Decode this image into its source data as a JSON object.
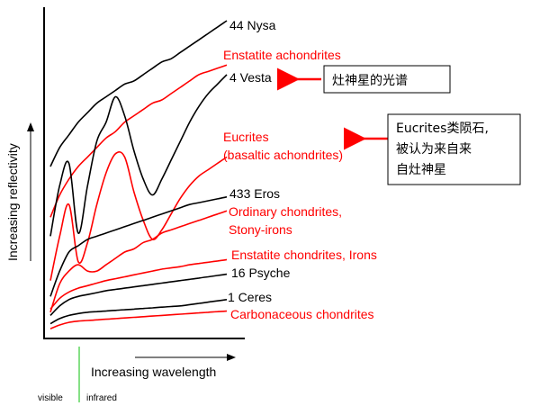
{
  "chart_data": {
    "type": "line",
    "title": "",
    "xlabel": "Increasing wavelength",
    "ylabel": "Increasing reflectivity",
    "x_markers": [
      "visible",
      "infrared"
    ],
    "x": [
      0,
      1,
      2,
      3,
      4,
      5,
      6,
      7,
      8,
      9,
      10,
      11,
      12,
      13,
      14,
      15,
      16,
      17,
      18,
      19
    ],
    "series": [
      {
        "name": "44 Nysa",
        "color": "#000000",
        "values": [
          2.6,
          2.9,
          3.1,
          3.3,
          3.45,
          3.6,
          3.7,
          3.8,
          3.9,
          3.95,
          4.05,
          4.15,
          4.25,
          4.3,
          4.4,
          4.5,
          4.6,
          4.7,
          4.8,
          4.9
        ]
      },
      {
        "name": "Enstatite achondrites",
        "color": "#ff0000",
        "values": [
          1.8,
          2.15,
          2.4,
          2.6,
          2.75,
          2.9,
          3.05,
          3.15,
          3.3,
          3.4,
          3.5,
          3.6,
          3.65,
          3.75,
          3.85,
          3.95,
          4.05,
          4.1,
          4.15,
          4.2
        ]
      },
      {
        "name": "4 Vesta",
        "color": "#000000",
        "values": [
          1.5,
          2.3,
          2.65,
          1.55,
          2.3,
          3.0,
          3.3,
          3.7,
          3.4,
          2.85,
          2.4,
          2.15,
          2.4,
          2.7,
          3.0,
          3.3,
          3.55,
          3.75,
          3.9,
          4.05
        ]
      },
      {
        "name": "Eucrites (basaltic achondrites)",
        "color": "#ff0000",
        "values": [
          0.8,
          1.5,
          2.0,
          1.1,
          1.4,
          2.0,
          2.5,
          2.8,
          2.75,
          2.2,
          1.75,
          1.45,
          1.6,
          1.85,
          2.1,
          2.3,
          2.45,
          2.55,
          2.65,
          2.75
        ]
      },
      {
        "name": "433 Eros",
        "color": "#000000",
        "values": [
          0.55,
          0.95,
          1.25,
          1.35,
          1.45,
          1.5,
          1.55,
          1.6,
          1.65,
          1.7,
          1.75,
          1.8,
          1.85,
          1.9,
          1.95,
          2.0,
          2.03,
          2.06,
          2.09,
          2.12
        ]
      },
      {
        "name": "Ordinary chondrites, Stony-irons",
        "color": "#ff0000",
        "values": [
          0.3,
          0.75,
          0.95,
          1.05,
          0.95,
          0.95,
          1.05,
          1.15,
          1.25,
          1.3,
          1.4,
          1.45,
          1.55,
          1.6,
          1.65,
          1.7,
          1.75,
          1.8,
          1.85,
          1.9
        ]
      },
      {
        "name": "Enstatite chondrites, Irons",
        "color": "#ff0000",
        "values": [
          0.35,
          0.52,
          0.62,
          0.68,
          0.72,
          0.76,
          0.8,
          0.83,
          0.86,
          0.89,
          0.92,
          0.95,
          0.98,
          1.0,
          1.02,
          1.05,
          1.07,
          1.09,
          1.11,
          1.13
        ]
      },
      {
        "name": "16 Psyche",
        "color": "#000000",
        "values": [
          0.25,
          0.4,
          0.5,
          0.55,
          0.58,
          0.61,
          0.64,
          0.66,
          0.68,
          0.7,
          0.72,
          0.74,
          0.76,
          0.78,
          0.8,
          0.82,
          0.84,
          0.86,
          0.88,
          0.9
        ]
      },
      {
        "name": "1 Ceres",
        "color": "#000000",
        "values": [
          0.12,
          0.2,
          0.25,
          0.28,
          0.3,
          0.31,
          0.32,
          0.33,
          0.34,
          0.35,
          0.36,
          0.37,
          0.38,
          0.39,
          0.4,
          0.42,
          0.44,
          0.46,
          0.48,
          0.5
        ]
      },
      {
        "name": "Carbonaceous chondrites",
        "color": "#ff0000",
        "values": [
          0.04,
          0.1,
          0.14,
          0.16,
          0.17,
          0.18,
          0.19,
          0.2,
          0.21,
          0.22,
          0.23,
          0.24,
          0.25,
          0.26,
          0.27,
          0.28,
          0.29,
          0.3,
          0.31,
          0.32
        ]
      }
    ],
    "ylim": [
      0,
      5
    ],
    "grid": false,
    "annotations": [
      {
        "text": "灶神星的光谱",
        "points_to": "4 Vesta"
      },
      {
        "text_lines": [
          "Eucrites类陨石,",
          "被认为来自来",
          "自灶神星"
        ],
        "points_to": "Eucrites (basaltic achondrites)"
      }
    ],
    "series_labels": [
      {
        "series": 0,
        "lines": [
          "44 Nysa"
        ],
        "color": "#000000"
      },
      {
        "series": 1,
        "lines": [
          "Enstatite achondrites"
        ],
        "color": "#ff0000"
      },
      {
        "series": 2,
        "lines": [
          "4 Vesta"
        ],
        "color": "#000000"
      },
      {
        "series": 3,
        "lines": [
          "Eucrites",
          "(basaltic achondrites)"
        ],
        "color": "#ff0000"
      },
      {
        "series": 4,
        "lines": [
          "433 Eros"
        ],
        "color": "#000000"
      },
      {
        "series": 5,
        "lines": [
          "Ordinary chondrites,",
          "Stony-irons"
        ],
        "color": "#ff0000"
      },
      {
        "series": 6,
        "lines": [
          "Enstatite chondrites, Irons"
        ],
        "color": "#ff0000"
      },
      {
        "series": 7,
        "lines": [
          "16 Psyche"
        ],
        "color": "#000000"
      },
      {
        "series": 8,
        "lines": [
          "1 Ceres"
        ],
        "color": "#000000"
      },
      {
        "series": 9,
        "lines": [
          "Carbonaceous chondrites"
        ],
        "color": "#ff0000"
      }
    ]
  }
}
